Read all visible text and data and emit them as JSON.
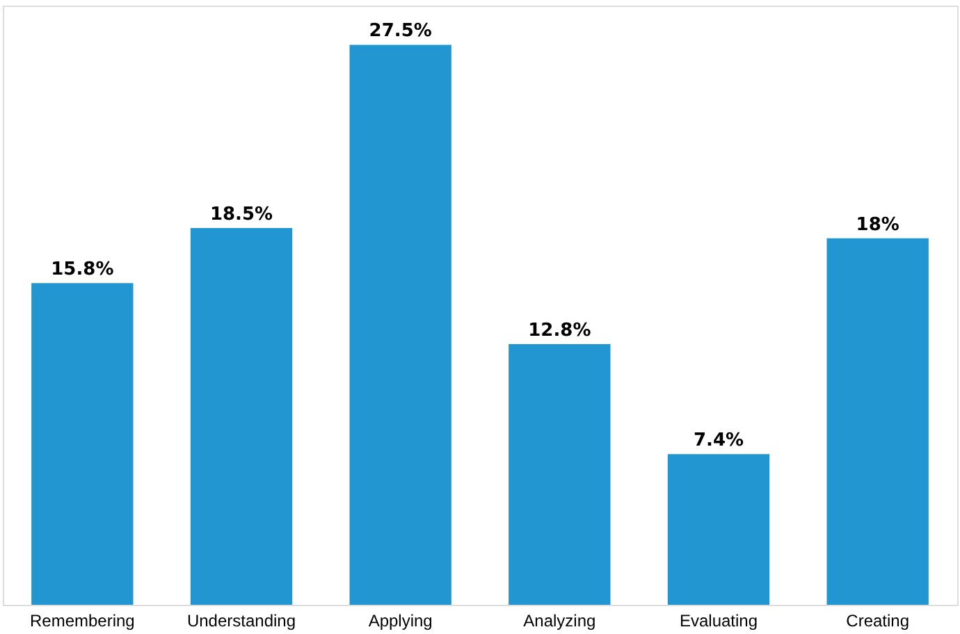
{
  "chart_data": {
    "type": "bar",
    "categories": [
      "Remembering",
      "Understanding",
      "Applying",
      "Analyzing",
      "Evaluating",
      "Creating"
    ],
    "values": [
      15.8,
      18.5,
      27.5,
      12.8,
      7.4,
      18
    ],
    "value_labels": [
      "15.8%",
      "18.5%",
      "27.5%",
      "12.8%",
      "7.4%",
      "18%"
    ],
    "color": "#2196d0"
  }
}
